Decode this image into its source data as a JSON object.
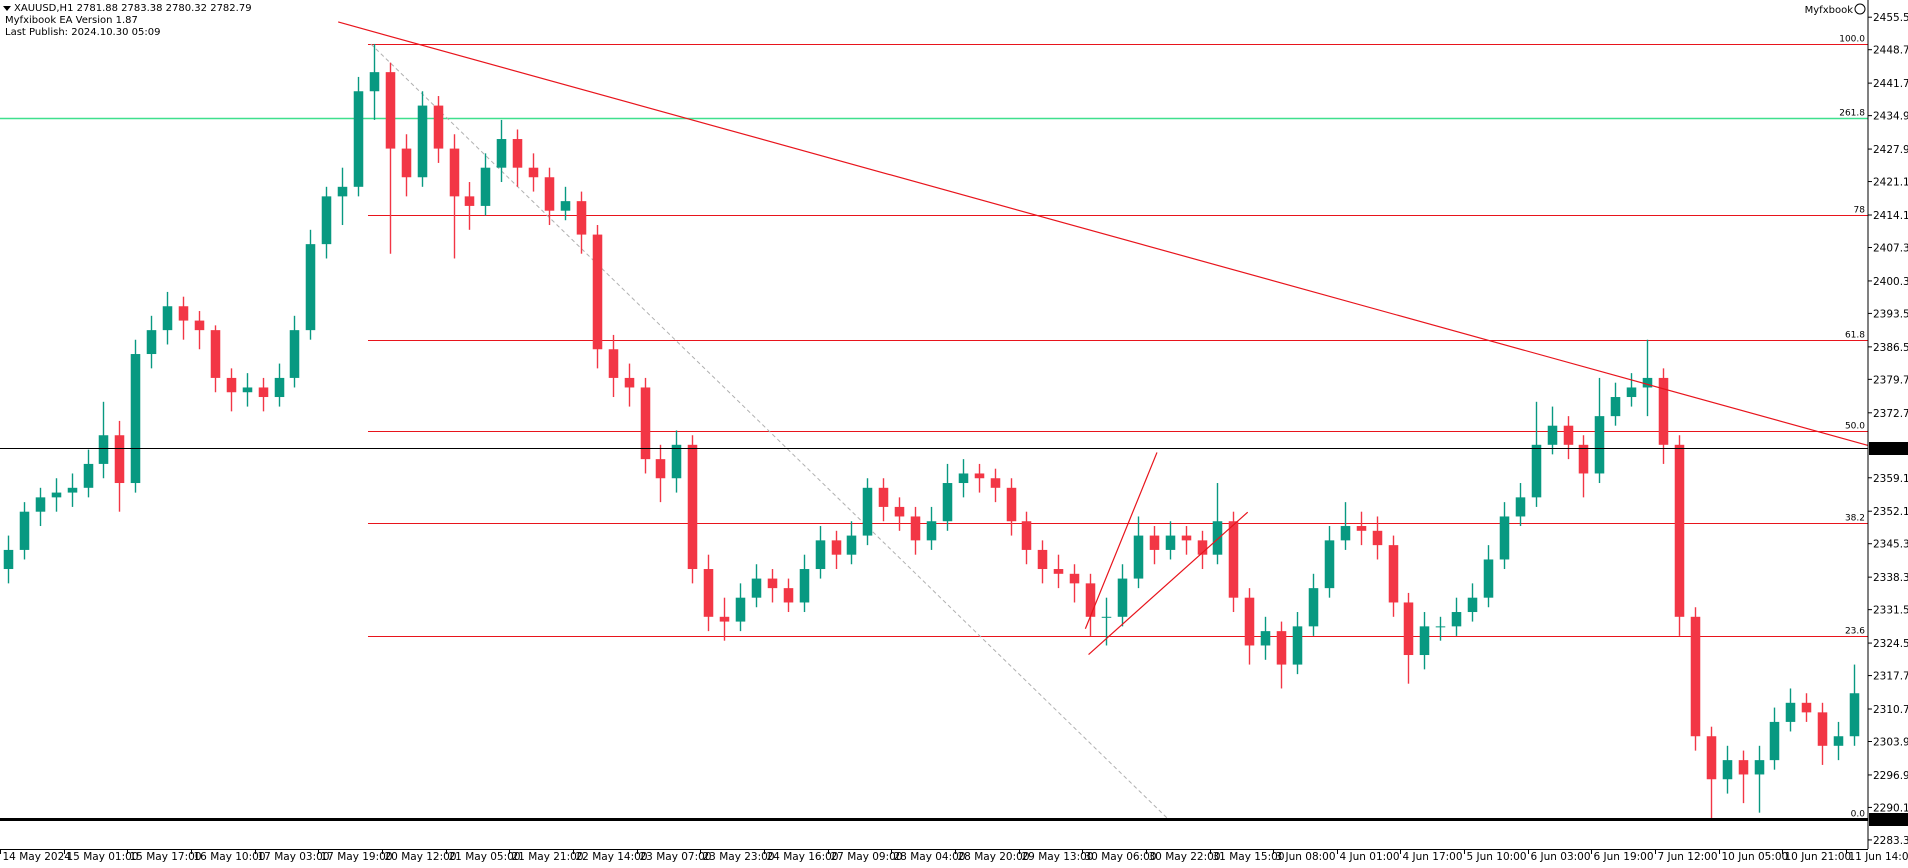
{
  "header": {
    "symbol_line": "XAUUSD,H1  2781.88 2783.38 2780.32 2782.79",
    "ea_line": "Myfxibook EA  Version 1.87",
    "publish_line": "Last Publish: 2024.10.30 05:09",
    "brand": "Myfxbook"
  },
  "chart_data": {
    "type": "candlestick",
    "up_color": "#089981",
    "down_color": "#f23645",
    "ylim": [
      2281.4,
      2459.1
    ],
    "yticks": [
      {
        "value": 2455.5,
        "label": "2455.50"
      },
      {
        "value": 2448.7,
        "label": "2448.70"
      },
      {
        "value": 2441.7,
        "label": "2441.70"
      },
      {
        "value": 2434.9,
        "label": "2434.90"
      },
      {
        "value": 2427.9,
        "label": "2427.90"
      },
      {
        "value": 2421.1,
        "label": "2421.10"
      },
      {
        "value": 2414.1,
        "label": "2414.10"
      },
      {
        "value": 2407.3,
        "label": "2407.30"
      },
      {
        "value": 2400.3,
        "label": "2400.30"
      },
      {
        "value": 2393.5,
        "label": "2393.50"
      },
      {
        "value": 2386.5,
        "label": "2386.50"
      },
      {
        "value": 2379.7,
        "label": "2379.70"
      },
      {
        "value": 2372.7,
        "label": "2372.70"
      },
      {
        "value": 2359.1,
        "label": "2359.10"
      },
      {
        "value": 2352.1,
        "label": "2352.10"
      },
      {
        "value": 2345.3,
        "label": "2345.30"
      },
      {
        "value": 2338.3,
        "label": "2338.30"
      },
      {
        "value": 2331.5,
        "label": "2331.50"
      },
      {
        "value": 2324.5,
        "label": "2324.50"
      },
      {
        "value": 2317.7,
        "label": "2317.70"
      },
      {
        "value": 2310.7,
        "label": "2310.70"
      },
      {
        "value": 2303.9,
        "label": "2303.90"
      },
      {
        "value": 2296.9,
        "label": "2296.90"
      },
      {
        "value": 2290.1,
        "label": "2290.10"
      },
      {
        "value": 2283.3,
        "label": "2283.30"
      }
    ],
    "categories": [
      "14 May 2024",
      null,
      null,
      null,
      "15 May 01:00",
      null,
      null,
      null,
      "15 May 17:00",
      null,
      null,
      null,
      "16 May 10:00",
      null,
      null,
      null,
      "17 May 03:00",
      null,
      null,
      null,
      "17 May 19:00",
      null,
      null,
      null,
      "20 May 12:00",
      null,
      null,
      null,
      "21 May 05:00",
      null,
      null,
      null,
      "21 May 21:00",
      null,
      null,
      null,
      "22 May 14:00",
      null,
      null,
      null,
      "23 May 07:00",
      null,
      null,
      null,
      "23 May 23:00",
      null,
      null,
      null,
      "24 May 16:00",
      null,
      null,
      null,
      "27 May 09:00",
      null,
      null,
      null,
      "28 May 04:00",
      null,
      null,
      null,
      "28 May 20:00",
      null,
      null,
      null,
      "29 May 13:00",
      null,
      null,
      null,
      "30 May 06:00",
      null,
      null,
      null,
      "30 May 22:00",
      null,
      null,
      null,
      "31 May 15:00",
      null,
      null,
      null,
      "3 Jun 08:00",
      null,
      null,
      null,
      "4 Jun 01:00",
      null,
      null,
      null,
      "4 Jun 17:00",
      null,
      null,
      null,
      "5 Jun 10:00",
      null,
      null,
      null,
      "6 Jun 03:00",
      null,
      null,
      null,
      "6 Jun 19:00",
      null,
      null,
      null,
      "7 Jun 12:00",
      null,
      null,
      null,
      "10 Jun 05:00",
      null,
      null,
      null,
      "10 Jun 21:00",
      null,
      null,
      null,
      "11 Jun 14:00"
    ],
    "ohlc": [
      [
        2340,
        2347,
        2337,
        2344
      ],
      [
        2344,
        2354,
        2342,
        2352
      ],
      [
        2352,
        2357,
        2349,
        2355
      ],
      [
        2355,
        2359,
        2352,
        2356
      ],
      [
        2356,
        2360,
        2353,
        2357
      ],
      [
        2357,
        2365,
        2355,
        2362
      ],
      [
        2362,
        2375,
        2359,
        2368
      ],
      [
        2368,
        2371,
        2352,
        2358
      ],
      [
        2358,
        2388,
        2356,
        2385
      ],
      [
        2385,
        2393,
        2382,
        2390
      ],
      [
        2390,
        2398,
        2387,
        2395
      ],
      [
        2395,
        2397,
        2388,
        2392
      ],
      [
        2392,
        2394,
        2386,
        2390
      ],
      [
        2390,
        2391,
        2377,
        2380
      ],
      [
        2380,
        2382,
        2373,
        2377
      ],
      [
        2377,
        2381,
        2374,
        2378
      ],
      [
        2378,
        2380,
        2373,
        2376
      ],
      [
        2376,
        2383,
        2374,
        2380
      ],
      [
        2380,
        2393,
        2378,
        2390
      ],
      [
        2390,
        2411,
        2388,
        2408
      ],
      [
        2408,
        2420,
        2405,
        2418
      ],
      [
        2418,
        2424,
        2412,
        2420
      ],
      [
        2420,
        2443,
        2418,
        2440
      ],
      [
        2440,
        2449.9,
        2434,
        2444
      ],
      [
        2444,
        2446,
        2406,
        2428
      ],
      [
        2428,
        2431,
        2418,
        2422
      ],
      [
        2422,
        2440,
        2420,
        2437
      ],
      [
        2437,
        2439,
        2425,
        2428
      ],
      [
        2428,
        2431,
        2405,
        2418
      ],
      [
        2418,
        2421,
        2411,
        2416
      ],
      [
        2416,
        2427,
        2414,
        2424
      ],
      [
        2424,
        2434,
        2421,
        2430
      ],
      [
        2430,
        2432,
        2420,
        2424
      ],
      [
        2424,
        2427,
        2419,
        2422
      ],
      [
        2422,
        2424,
        2412,
        2415
      ],
      [
        2415,
        2420,
        2413,
        2417
      ],
      [
        2417,
        2419,
        2406,
        2410
      ],
      [
        2410,
        2412,
        2382,
        2386
      ],
      [
        2386,
        2389,
        2376,
        2380
      ],
      [
        2380,
        2383,
        2374,
        2378
      ],
      [
        2378,
        2380,
        2360,
        2363
      ],
      [
        2363,
        2366,
        2354,
        2359
      ],
      [
        2359,
        2369,
        2356,
        2366
      ],
      [
        2366,
        2368,
        2337,
        2340
      ],
      [
        2340,
        2343,
        2327,
        2330
      ],
      [
        2330,
        2334,
        2325,
        2329
      ],
      [
        2329,
        2337,
        2327,
        2334
      ],
      [
        2334,
        2341,
        2332,
        2338
      ],
      [
        2338,
        2340,
        2333,
        2336
      ],
      [
        2336,
        2338,
        2331,
        2333
      ],
      [
        2333,
        2343,
        2331,
        2340
      ],
      [
        2340,
        2349,
        2338,
        2346
      ],
      [
        2346,
        2348,
        2340,
        2343
      ],
      [
        2343,
        2350,
        2341,
        2347
      ],
      [
        2347,
        2359,
        2345,
        2357
      ],
      [
        2357,
        2359,
        2350,
        2353
      ],
      [
        2353,
        2355,
        2348,
        2351
      ],
      [
        2351,
        2353,
        2343,
        2346
      ],
      [
        2346,
        2353,
        2344,
        2350
      ],
      [
        2350,
        2362,
        2348,
        2358
      ],
      [
        2358,
        2363,
        2355,
        2360
      ],
      [
        2360,
        2362,
        2356,
        2359
      ],
      [
        2359,
        2361,
        2354,
        2357
      ],
      [
        2357,
        2359,
        2347,
        2350
      ],
      [
        2350,
        2352,
        2341,
        2344
      ],
      [
        2344,
        2346,
        2337,
        2340
      ],
      [
        2340,
        2343,
        2336,
        2339
      ],
      [
        2339,
        2341,
        2333,
        2337
      ],
      [
        2337,
        2339,
        2326,
        2330
      ],
      [
        2330,
        2334,
        2324,
        2330
      ],
      [
        2330,
        2341,
        2328,
        2338
      ],
      [
        2338,
        2351,
        2336,
        2347
      ],
      [
        2347,
        2349,
        2341,
        2344
      ],
      [
        2344,
        2350,
        2342,
        2347
      ],
      [
        2347,
        2349,
        2343,
        2346
      ],
      [
        2346,
        2348,
        2340,
        2343
      ],
      [
        2343,
        2358,
        2341,
        2350
      ],
      [
        2350,
        2352,
        2331,
        2334
      ],
      [
        2334,
        2336,
        2320,
        2324
      ],
      [
        2324,
        2330,
        2321,
        2327
      ],
      [
        2327,
        2329,
        2315,
        2320
      ],
      [
        2320,
        2331,
        2318,
        2328
      ],
      [
        2328,
        2339,
        2326,
        2336
      ],
      [
        2336,
        2349,
        2334,
        2346
      ],
      [
        2346,
        2354,
        2344,
        2349
      ],
      [
        2349,
        2352,
        2345,
        2348
      ],
      [
        2348,
        2351,
        2342,
        2345
      ],
      [
        2345,
        2347,
        2330,
        2333
      ],
      [
        2333,
        2335,
        2316,
        2322
      ],
      [
        2322,
        2331,
        2319,
        2328
      ],
      [
        2328,
        2330,
        2325,
        2328
      ],
      [
        2328,
        2334,
        2326,
        2331
      ],
      [
        2331,
        2337,
        2329,
        2334
      ],
      [
        2334,
        2345,
        2332,
        2342
      ],
      [
        2342,
        2354,
        2340,
        2351
      ],
      [
        2351,
        2358,
        2349,
        2355
      ],
      [
        2355,
        2375,
        2353,
        2366
      ],
      [
        2366,
        2374,
        2364,
        2370
      ],
      [
        2370,
        2372,
        2363,
        2366
      ],
      [
        2366,
        2368,
        2355,
        2360
      ],
      [
        2360,
        2380,
        2358,
        2372
      ],
      [
        2372,
        2379,
        2370,
        2376
      ],
      [
        2376,
        2381,
        2374,
        2378
      ],
      [
        2378,
        2388,
        2372,
        2380
      ],
      [
        2380,
        2382,
        2362,
        2366
      ],
      [
        2366,
        2368,
        2326,
        2330
      ],
      [
        2330,
        2332,
        2302,
        2305
      ],
      [
        2305,
        2307,
        2287.7,
        2296
      ],
      [
        2296,
        2303,
        2293,
        2300
      ],
      [
        2300,
        2302,
        2291,
        2297
      ],
      [
        2297,
        2303,
        2289,
        2300
      ],
      [
        2300,
        2311,
        2298,
        2308
      ],
      [
        2308,
        2315,
        2306,
        2312
      ],
      [
        2312,
        2314,
        2308,
        2310
      ],
      [
        2310,
        2312,
        2299,
        2303
      ],
      [
        2303,
        2308,
        2300,
        2305
      ],
      [
        2305,
        2320,
        2303,
        2314
      ]
    ],
    "fib_levels": [
      {
        "label": "100.0",
        "price": 2449.9,
        "color": "#e8141c"
      },
      {
        "label": "261.8",
        "price": 2434.4,
        "color": "#3ee08e",
        "full_width": true
      },
      {
        "label": "78",
        "price": 2414.2,
        "color": "#e8141c"
      },
      {
        "label": "61.8",
        "price": 2387.9,
        "color": "#e8141c"
      },
      {
        "label": "50.0",
        "price": 2368.8,
        "color": "#e8141c"
      },
      {
        "label": "38.2",
        "price": 2349.6,
        "color": "#e8141c"
      },
      {
        "label": "23.6",
        "price": 2326.0,
        "color": "#e8141c"
      },
      {
        "label": "0.0",
        "price": 2287.68,
        "color": "#e8141c"
      }
    ],
    "fib_link": {
      "from": [
        22.8,
        2449.9
      ],
      "to": [
        72.9,
        2287.68
      ],
      "color": "#b0b0b0"
    },
    "trend_lines": [
      {
        "from": [
          20.75,
          2454.5
        ],
        "to": [
          116.85,
          2365.9
        ],
        "color": "#e8141c"
      },
      {
        "from": [
          67.7,
          2327.5
        ],
        "to": [
          72.2,
          2364.4
        ],
        "color": "#e8141c"
      },
      {
        "from": [
          67.9,
          2322.1
        ],
        "to": [
          77.9,
          2351.9
        ],
        "color": "#e8141c"
      }
    ],
    "price_lines": [
      {
        "price": 2365.41,
        "color": "#000000",
        "width": 1
      },
      {
        "price": 2287.68,
        "color": "#000000",
        "width": 3
      }
    ]
  }
}
